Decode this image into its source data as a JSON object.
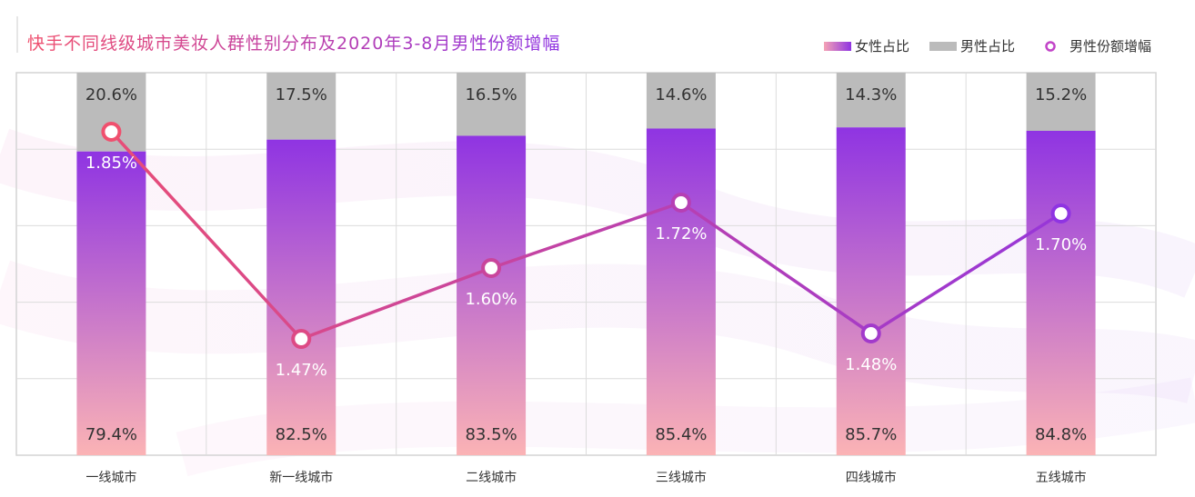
{
  "title": "快手不同线级城市美妆人群性别分布及2020年3-8月男性份额增幅",
  "legend": {
    "female": "女性占比",
    "male": "男性占比",
    "growth": "男性份额增幅"
  },
  "colors": {
    "title_start": "#f0506e",
    "title_end": "#8f34e2",
    "male_bar": "#bbbbbb",
    "female_top": "#8f34e2",
    "female_bottom": "#fbb3b5",
    "line_start": "#f0506e",
    "line_end": "#8f34e2"
  },
  "chart_data": {
    "type": "bar",
    "stacked": true,
    "categories": [
      "一线城市",
      "新一线城市",
      "二线城市",
      "三线城市",
      "四线城市",
      "五线城市"
    ],
    "series": [
      {
        "name": "女性占比",
        "values": [
          79.4,
          82.5,
          83.5,
          85.4,
          85.7,
          84.8
        ],
        "labels": [
          "79.4%",
          "82.5%",
          "83.5%",
          "85.4%",
          "85.7%",
          "84.8%"
        ]
      },
      {
        "name": "男性占比",
        "values": [
          20.6,
          17.5,
          16.5,
          14.6,
          14.3,
          15.2
        ],
        "labels": [
          "20.6%",
          "17.5%",
          "16.5%",
          "14.6%",
          "14.3%",
          "15.2%"
        ]
      },
      {
        "name": "男性份额增幅",
        "type": "line",
        "values": [
          1.85,
          1.47,
          1.6,
          1.72,
          1.48,
          1.7
        ],
        "labels": [
          "1.85%",
          "1.47%",
          "1.60%",
          "1.72%",
          "1.48%",
          "1.70%"
        ]
      }
    ],
    "ylim": [
      0,
      100
    ],
    "line_ylim": [
      1.4,
      1.9
    ],
    "grid": true,
    "legend_position": "top-right"
  }
}
